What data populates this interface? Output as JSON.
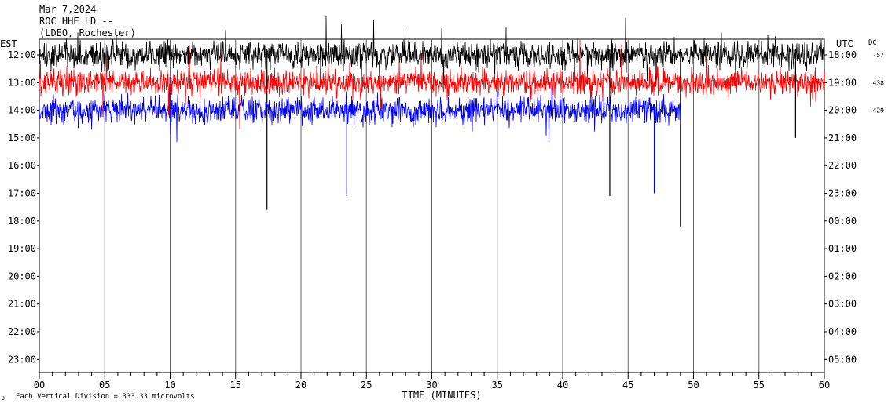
{
  "chart_data": {
    "type": "line",
    "title_lines": [
      "Mar 7,2024",
      "ROC HHE LD --",
      "(LDEO, Rochester)"
    ],
    "left_axis_label": "EST",
    "right_axis_label": "UTC",
    "dc_label": "DC",
    "left_times": [
      "12:00",
      "13:00",
      "14:00",
      "15:00",
      "16:00",
      "17:00",
      "18:00",
      "19:00",
      "20:00",
      "21:00",
      "22:00",
      "23:00"
    ],
    "right_times": [
      "18:00",
      "19:00",
      "20:00",
      "21:00",
      "22:00",
      "23:00",
      "00:00",
      "01:00",
      "02:00",
      "03:00",
      "04:00",
      "05:00"
    ],
    "dc_values": [
      "-57",
      "438",
      "429"
    ],
    "x_ticks": [
      "00",
      "05",
      "10",
      "15",
      "20",
      "25",
      "30",
      "35",
      "40",
      "45",
      "50",
      "55",
      "60"
    ],
    "xlabel": "TIME (MINUTES)",
    "footer_text": "Each Vertical Division =  333.33 microvolts",
    "xlim": [
      0,
      60
    ],
    "series": [
      {
        "color": "#000000",
        "hour_index": 0,
        "end_minute": 60
      },
      {
        "color": "#ff0000",
        "hour_index": 1,
        "end_minute": 60
      },
      {
        "color": "#0000ff",
        "hour_index": 2,
        "end_minute": 49
      }
    ],
    "spikes": [
      {
        "series": 0,
        "minute": 17.4,
        "amp_hours": 5.6
      },
      {
        "series": 0,
        "minute": 43.6,
        "amp_hours": 5.1
      },
      {
        "series": 0,
        "minute": 49.0,
        "amp_hours": 6.2
      },
      {
        "series": 0,
        "minute": 57.8,
        "amp_hours": 3.0
      },
      {
        "series": 2,
        "minute": 23.5,
        "amp_hours": 3.1
      },
      {
        "series": 2,
        "minute": 47.0,
        "amp_hours": 3.0
      }
    ]
  }
}
